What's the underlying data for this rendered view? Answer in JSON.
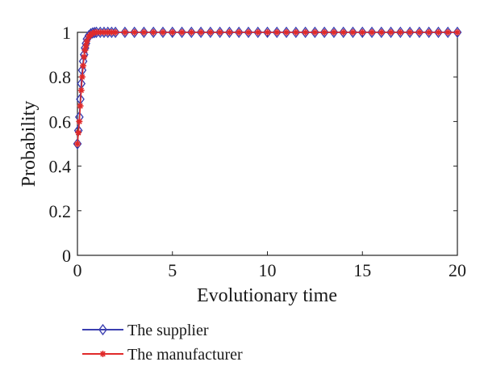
{
  "chart_data": {
    "type": "line",
    "xlabel": "Evolutionary time",
    "ylabel": "Probability",
    "xlim": [
      0,
      20
    ],
    "ylim": [
      0,
      1
    ],
    "x_ticks": [
      0,
      5,
      10,
      15,
      20
    ],
    "x_tick_labels": [
      "0",
      "5",
      "10",
      "15",
      "20"
    ],
    "y_ticks": [
      0,
      0.2,
      0.4,
      0.6,
      0.8,
      1
    ],
    "y_tick_labels": [
      "0",
      "0.2",
      "0.4",
      "0.6",
      "0.8",
      "1"
    ],
    "grid": false,
    "legend_position": "bottom-left, below plot",
    "x": [
      0,
      0.05,
      0.1,
      0.15,
      0.2,
      0.25,
      0.3,
      0.35,
      0.4,
      0.45,
      0.5,
      0.6,
      0.7,
      0.8,
      0.9,
      1.0,
      1.2,
      1.4,
      1.6,
      1.8,
      2.0,
      2.5,
      3,
      3.5,
      4,
      4.5,
      5,
      5.5,
      6,
      6.5,
      7,
      7.5,
      8,
      8.5,
      9,
      9.5,
      10,
      10.5,
      11,
      11.5,
      12,
      12.5,
      13,
      13.5,
      14,
      14.5,
      15,
      15.5,
      16,
      16.5,
      17,
      17.5,
      18,
      18.5,
      19,
      19.5,
      20
    ],
    "series": [
      {
        "name": "The supplier",
        "color": "#3b3fb0",
        "marker": "diamond",
        "values": [
          0.5,
          0.56,
          0.62,
          0.7,
          0.77,
          0.83,
          0.87,
          0.9,
          0.93,
          0.95,
          0.97,
          0.985,
          0.993,
          0.997,
          0.999,
          1,
          1,
          1,
          1,
          1,
          1,
          1,
          1,
          1,
          1,
          1,
          1,
          1,
          1,
          1,
          1,
          1,
          1,
          1,
          1,
          1,
          1,
          1,
          1,
          1,
          1,
          1,
          1,
          1,
          1,
          1,
          1,
          1,
          1,
          1,
          1,
          1,
          1,
          1,
          1,
          1,
          1
        ]
      },
      {
        "name": "The manufacturer",
        "color": "#e02a2a",
        "marker": "asterisk",
        "values": [
          0.5,
          0.55,
          0.6,
          0.67,
          0.74,
          0.8,
          0.85,
          0.89,
          0.92,
          0.94,
          0.96,
          0.98,
          0.99,
          0.996,
          0.999,
          1,
          1,
          1,
          1,
          1,
          1,
          1,
          1,
          1,
          1,
          1,
          1,
          1,
          1,
          1,
          1,
          1,
          1,
          1,
          1,
          1,
          1,
          1,
          1,
          1,
          1,
          1,
          1,
          1,
          1,
          1,
          1,
          1,
          1,
          1,
          1,
          1,
          1,
          1,
          1,
          1,
          1
        ]
      }
    ]
  }
}
